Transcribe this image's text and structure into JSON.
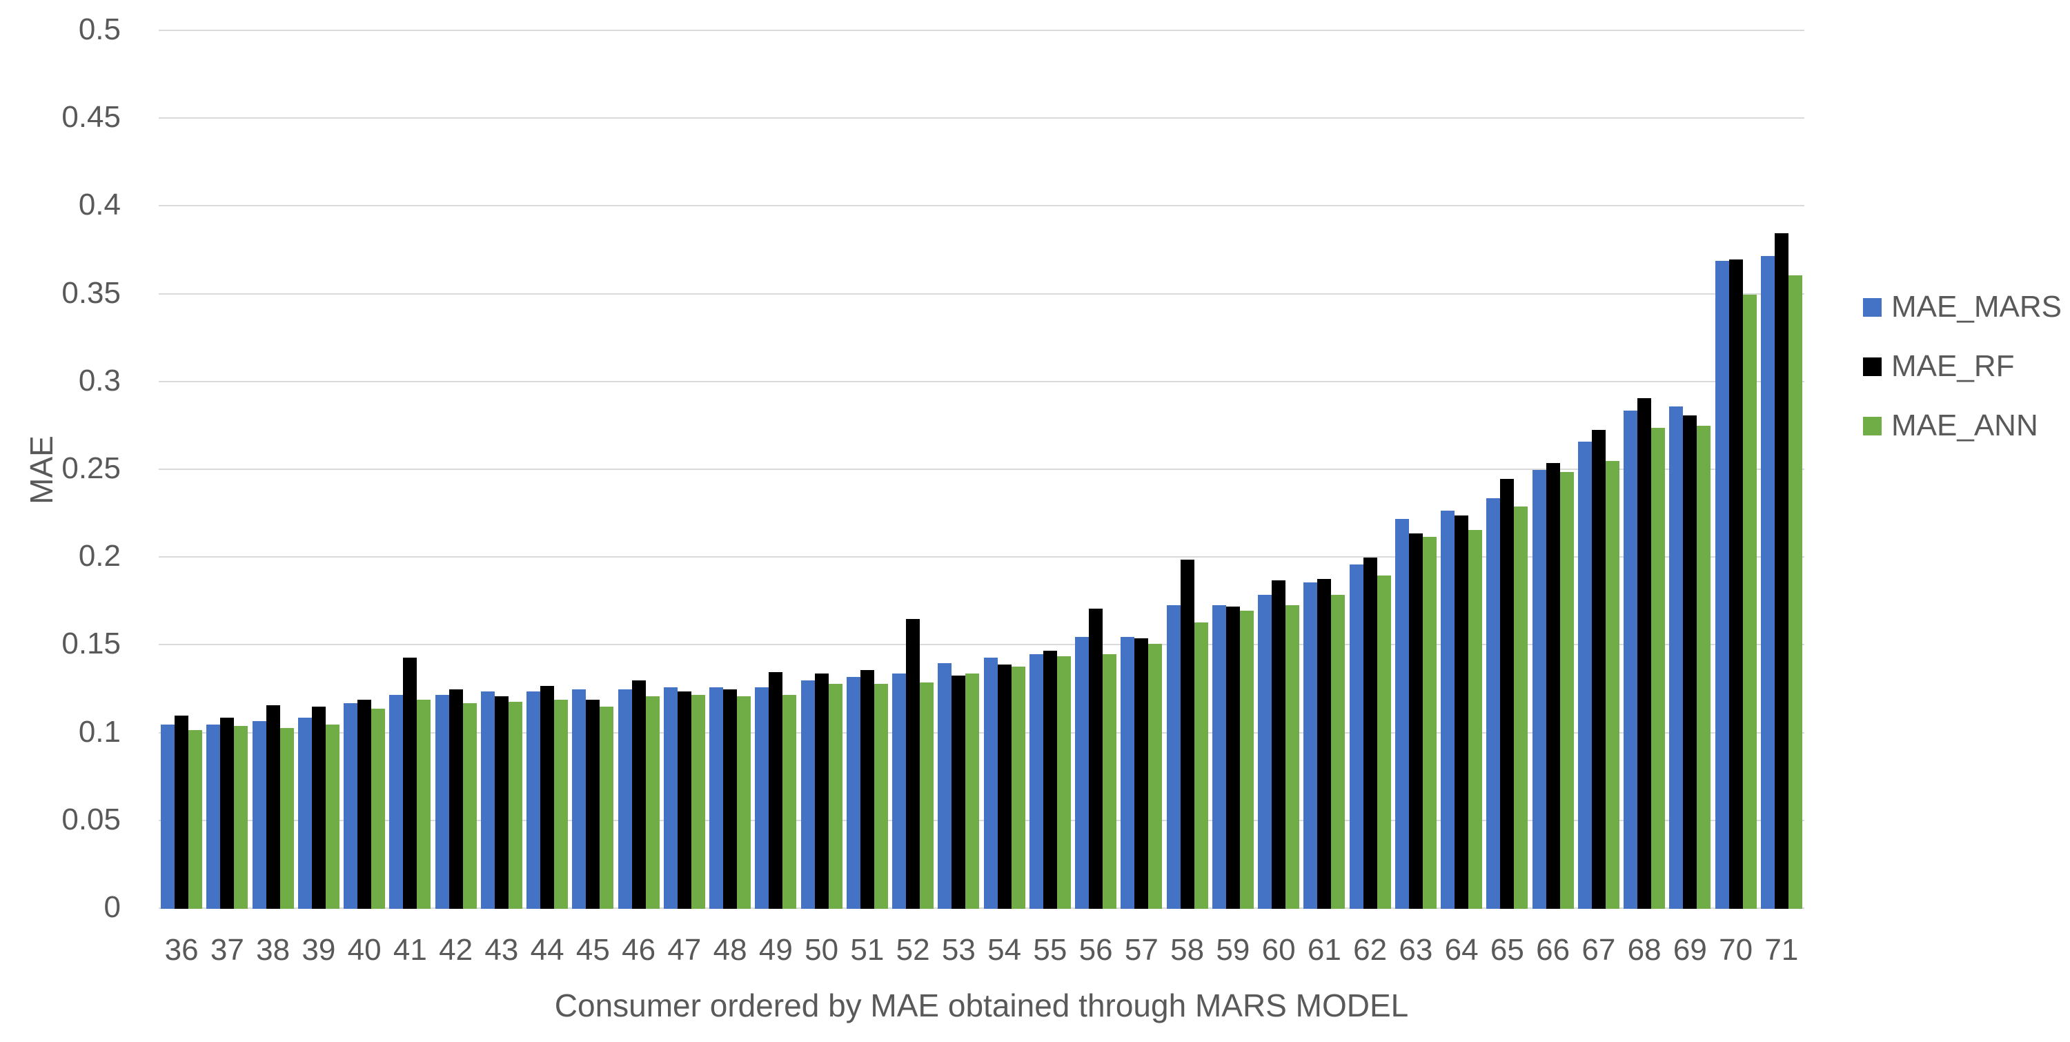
{
  "chart_data": {
    "type": "bar",
    "title": "",
    "xlabel": "Consumer ordered by MAE obtained through MARS MODEL",
    "ylabel": "MAE",
    "categories": [
      "36",
      "37",
      "38",
      "39",
      "40",
      "41",
      "42",
      "43",
      "44",
      "45",
      "46",
      "47",
      "48",
      "49",
      "50",
      "51",
      "52",
      "53",
      "54",
      "55",
      "56",
      "57",
      "58",
      "59",
      "60",
      "61",
      "62",
      "63",
      "64",
      "65",
      "66",
      "67",
      "68",
      "69",
      "70",
      "71"
    ],
    "series": [
      {
        "name": "MAE_MARS",
        "color": "#4472c4",
        "values": [
          0.105,
          0.105,
          0.107,
          0.109,
          0.117,
          0.122,
          0.122,
          0.124,
          0.124,
          0.125,
          0.125,
          0.126,
          0.126,
          0.126,
          0.13,
          0.132,
          0.134,
          0.14,
          0.143,
          0.145,
          0.155,
          0.155,
          0.173,
          0.173,
          0.179,
          0.186,
          0.196,
          0.222,
          0.227,
          0.234,
          0.25,
          0.266,
          0.284,
          0.286,
          0.369,
          0.372
        ]
      },
      {
        "name": "MAE_RF",
        "color": "#000000",
        "values": [
          0.11,
          0.109,
          0.116,
          0.115,
          0.119,
          0.143,
          0.125,
          0.121,
          0.127,
          0.119,
          0.13,
          0.124,
          0.125,
          0.135,
          0.134,
          0.136,
          0.165,
          0.133,
          0.139,
          0.147,
          0.171,
          0.154,
          0.199,
          0.172,
          0.187,
          0.188,
          0.2,
          0.214,
          0.224,
          0.245,
          0.254,
          0.273,
          0.291,
          0.281,
          0.37,
          0.385
        ]
      },
      {
        "name": "MAE_ANN",
        "color": "#70ad47",
        "values": [
          0.102,
          0.104,
          0.103,
          0.105,
          0.114,
          0.119,
          0.117,
          0.118,
          0.119,
          0.115,
          0.121,
          0.122,
          0.121,
          0.122,
          0.128,
          0.128,
          0.129,
          0.134,
          0.138,
          0.144,
          0.145,
          0.151,
          0.163,
          0.17,
          0.173,
          0.179,
          0.19,
          0.212,
          0.216,
          0.229,
          0.249,
          0.255,
          0.274,
          0.275,
          0.35,
          0.361
        ]
      }
    ],
    "ylim": [
      0,
      0.5
    ],
    "yticks": [
      {
        "label": "0",
        "value": 0
      },
      {
        "label": "0.05",
        "value": 0.05
      },
      {
        "label": "0.1",
        "value": 0.1
      },
      {
        "label": "0.15",
        "value": 0.15
      },
      {
        "label": "0.2",
        "value": 0.2
      },
      {
        "label": "0.25",
        "value": 0.25
      },
      {
        "label": "0.3",
        "value": 0.3
      },
      {
        "label": "0.35",
        "value": 0.35
      },
      {
        "label": "0.4",
        "value": 0.4
      },
      {
        "label": "0.45",
        "value": 0.45
      },
      {
        "label": "0.5",
        "value": 0.5
      }
    ],
    "grid": "horizontal",
    "legend_position": "right",
    "legend_items": [
      "MAE_MARS",
      "MAE_RF",
      "MAE_ANN"
    ]
  },
  "styles": {
    "gridline_color": "#d9d9d9",
    "text_color": "#595959",
    "background": "#ffffff"
  }
}
